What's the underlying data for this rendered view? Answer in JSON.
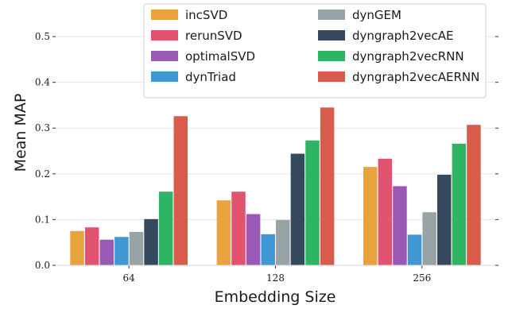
{
  "chart_data": {
    "type": "bar",
    "xlabel": "Embedding Size",
    "ylabel": "Mean MAP",
    "categories": [
      "64",
      "128",
      "256"
    ],
    "ylim": [
      0,
      0.58
    ],
    "yticks": [
      "0.0",
      "0.1",
      "0.2",
      "0.3",
      "0.4",
      "0.5"
    ],
    "grid": true,
    "legend_position": "top-right",
    "series": [
      {
        "name": "incSVD",
        "color": "#E8A33D",
        "values": [
          0.075,
          0.142,
          0.215
        ]
      },
      {
        "name": "rerunSVD",
        "color": "#E1536F",
        "values": [
          0.083,
          0.161,
          0.233
        ]
      },
      {
        "name": "optimalSVD",
        "color": "#9B59B6",
        "values": [
          0.056,
          0.112,
          0.173
        ]
      },
      {
        "name": "dynTriad",
        "color": "#3F98D4",
        "values": [
          0.062,
          0.068,
          0.067
        ]
      },
      {
        "name": "dynGEM",
        "color": "#97A3A4",
        "values": [
          0.073,
          0.099,
          0.116
        ]
      },
      {
        "name": "dyngraph2vecAE",
        "color": "#34495E",
        "values": [
          0.101,
          0.244,
          0.198
        ]
      },
      {
        "name": "dyngraph2vecRNN",
        "color": "#2EB564",
        "values": [
          0.161,
          0.273,
          0.266
        ]
      },
      {
        "name": "dyngraph2vecAERNN",
        "color": "#D85B4B",
        "values": [
          0.326,
          0.345,
          0.307
        ]
      }
    ]
  }
}
